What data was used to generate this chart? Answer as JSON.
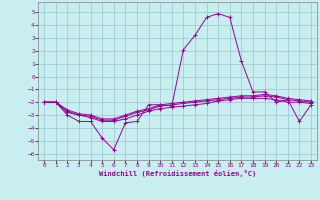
{
  "xlabel": "Windchill (Refroidissement éolien,°C)",
  "background_color": "#c8eef0",
  "grid_color": "#a0ccd4",
  "line_color": "#990099",
  "xlim": [
    -0.5,
    23.5
  ],
  "ylim": [
    -6.5,
    5.8
  ],
  "yticks": [
    -6,
    -5,
    -4,
    -3,
    -2,
    -1,
    0,
    1,
    2,
    3,
    4,
    5
  ],
  "xticks": [
    0,
    1,
    2,
    3,
    4,
    5,
    6,
    7,
    8,
    9,
    10,
    11,
    12,
    13,
    14,
    15,
    16,
    17,
    18,
    19,
    20,
    21,
    22,
    23
  ],
  "series": [
    {
      "x": [
        0,
        1,
        2,
        3,
        4,
        5,
        6,
        7,
        8,
        9,
        10,
        11,
        12,
        13,
        14,
        15,
        16,
        17,
        18,
        19,
        20,
        21,
        22,
        23
      ],
      "y": [
        -2,
        -2,
        -3,
        -3.5,
        -3.5,
        -4.8,
        -5.7,
        -3.6,
        -3.5,
        -2.2,
        -2.2,
        -2.3,
        2.1,
        3.2,
        4.6,
        4.9,
        4.6,
        1.2,
        -1.2,
        -1.2,
        -2.0,
        -1.8,
        -3.5,
        -2.2
      ]
    },
    {
      "x": [
        0,
        1,
        2,
        3,
        4,
        5,
        6,
        7,
        8,
        9,
        10,
        11,
        12,
        13,
        14,
        15,
        16,
        17,
        18,
        19,
        20,
        21,
        22,
        23
      ],
      "y": [
        -2,
        -2,
        -2.8,
        -3.0,
        -3.2,
        -3.5,
        -3.5,
        -3.3,
        -3.0,
        -2.7,
        -2.5,
        -2.4,
        -2.3,
        -2.2,
        -2.1,
        -1.9,
        -1.8,
        -1.7,
        -1.7,
        -1.7,
        -1.8,
        -2.0,
        -2.0,
        -2.1
      ]
    },
    {
      "x": [
        0,
        1,
        2,
        3,
        4,
        5,
        6,
        7,
        8,
        9,
        10,
        11,
        12,
        13,
        14,
        15,
        16,
        17,
        18,
        19,
        20,
        21,
        22,
        23
      ],
      "y": [
        -2,
        -2,
        -2.7,
        -3.0,
        -3.1,
        -3.4,
        -3.4,
        -3.1,
        -2.8,
        -2.6,
        -2.3,
        -2.2,
        -2.1,
        -2.0,
        -1.9,
        -1.8,
        -1.7,
        -1.6,
        -1.6,
        -1.5,
        -1.6,
        -1.8,
        -1.9,
        -2.0
      ]
    },
    {
      "x": [
        0,
        1,
        2,
        3,
        4,
        5,
        6,
        7,
        8,
        9,
        10,
        11,
        12,
        13,
        14,
        15,
        16,
        17,
        18,
        19,
        20,
        21,
        22,
        23
      ],
      "y": [
        -2,
        -2,
        -2.6,
        -2.9,
        -3.0,
        -3.3,
        -3.3,
        -3.0,
        -2.7,
        -2.5,
        -2.2,
        -2.1,
        -2.0,
        -1.9,
        -1.8,
        -1.7,
        -1.6,
        -1.5,
        -1.5,
        -1.4,
        -1.5,
        -1.7,
        -1.8,
        -1.9
      ]
    }
  ]
}
